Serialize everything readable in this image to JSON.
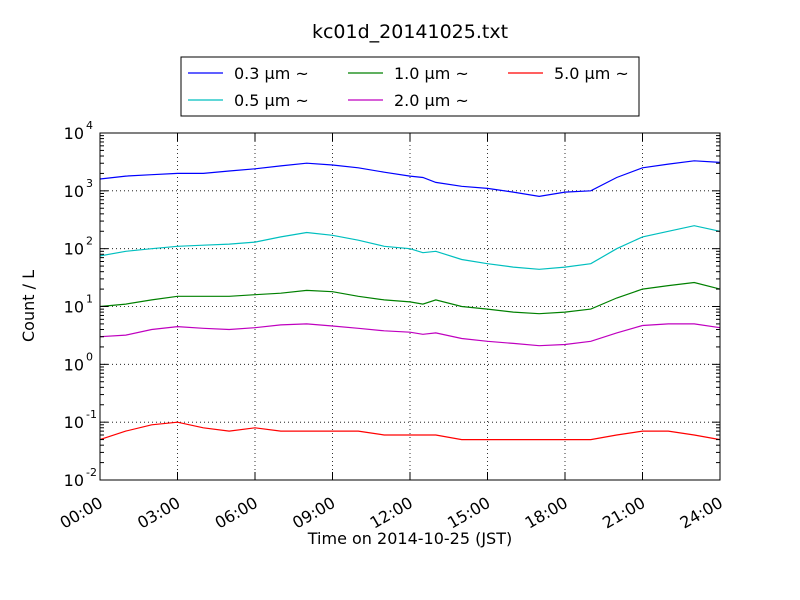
{
  "chart_data": {
    "type": "line",
    "title": "kc01d_20141025.txt",
    "xlabel": "Time on 2014-10-25 (JST)",
    "ylabel": "Count / L",
    "y_scale": "log",
    "ylim": [
      0.01,
      10000
    ],
    "xlim": [
      "00:00",
      "24:00"
    ],
    "x_ticks": [
      "00:00",
      "03:00",
      "06:00",
      "09:00",
      "12:00",
      "15:00",
      "18:00",
      "21:00",
      "24:00"
    ],
    "y_ticks": [
      {
        "base": "10",
        "exp": "-2"
      },
      {
        "base": "10",
        "exp": "-1"
      },
      {
        "base": "10",
        "exp": "0"
      },
      {
        "base": "10",
        "exp": "1"
      },
      {
        "base": "10",
        "exp": "2"
      },
      {
        "base": "10",
        "exp": "3"
      },
      {
        "base": "10",
        "exp": "4"
      }
    ],
    "grid": true,
    "legend_position": "top",
    "x": [
      "00:00",
      "01:00",
      "02:00",
      "03:00",
      "04:00",
      "05:00",
      "06:00",
      "07:00",
      "08:00",
      "09:00",
      "10:00",
      "11:00",
      "12:00",
      "12:30",
      "13:00",
      "14:00",
      "15:00",
      "16:00",
      "17:00",
      "18:00",
      "19:00",
      "20:00",
      "21:00",
      "22:00",
      "23:00",
      "24:00"
    ],
    "series": [
      {
        "name": "0.3 μm ~",
        "color": "#0000ff",
        "values": [
          1600,
          1800,
          1900,
          2000,
          2000,
          2200,
          2400,
          2700,
          3000,
          2800,
          2500,
          2100,
          1800,
          1700,
          1400,
          1200,
          1100,
          950,
          800,
          950,
          1000,
          1700,
          2500,
          2900,
          3300,
          3100
        ]
      },
      {
        "name": "0.5 μm ~",
        "color": "#00bfbf",
        "values": [
          75,
          90,
          100,
          110,
          115,
          120,
          130,
          160,
          190,
          170,
          140,
          110,
          100,
          85,
          90,
          65,
          55,
          48,
          44,
          48,
          55,
          100,
          160,
          200,
          250,
          200
        ]
      },
      {
        "name": "1.0 μm ~",
        "color": "#008000",
        "values": [
          10,
          11,
          13,
          15,
          15,
          15,
          16,
          17,
          19,
          18,
          15,
          13,
          12,
          11,
          13,
          10,
          9,
          8,
          7.5,
          8,
          9,
          14,
          20,
          23,
          26,
          20
        ]
      },
      {
        "name": "2.0 μm ~",
        "color": "#bf00bf",
        "values": [
          3,
          3.2,
          4,
          4.5,
          4.2,
          4,
          4.3,
          4.8,
          5,
          4.6,
          4.2,
          3.8,
          3.6,
          3.3,
          3.5,
          2.8,
          2.5,
          2.3,
          2.1,
          2.2,
          2.5,
          3.5,
          4.7,
          5,
          5,
          4.3
        ]
      },
      {
        "name": "5.0 μm ~",
        "color": "#ff0000",
        "values": [
          0.05,
          0.07,
          0.09,
          0.1,
          0.08,
          0.07,
          0.08,
          0.07,
          0.07,
          0.07,
          0.07,
          0.06,
          0.06,
          0.06,
          0.06,
          0.05,
          0.05,
          0.05,
          0.05,
          0.05,
          0.05,
          0.06,
          0.07,
          0.07,
          0.06,
          0.05
        ]
      }
    ]
  }
}
